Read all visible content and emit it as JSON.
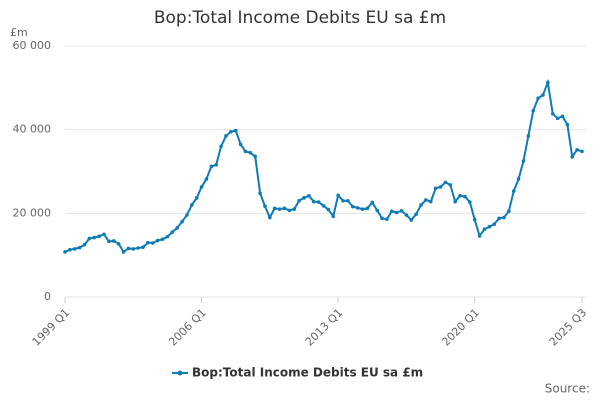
{
  "chart_data": {
    "type": "line",
    "title": "Bop:Total Income Debits EU sa £m",
    "y_unit": "£m",
    "source": "Source:",
    "categories": [
      "1999 Q1",
      null,
      null,
      null,
      null,
      null,
      null,
      null,
      null,
      null,
      null,
      null,
      null,
      null,
      null,
      null,
      null,
      null,
      null,
      null,
      null,
      null,
      null,
      null,
      null,
      null,
      null,
      null,
      "2006 Q1",
      null,
      null,
      null,
      null,
      null,
      null,
      null,
      null,
      null,
      null,
      null,
      null,
      null,
      null,
      null,
      null,
      null,
      null,
      null,
      null,
      null,
      null,
      null,
      null,
      null,
      null,
      null,
      "2013 Q1",
      null,
      null,
      null,
      null,
      null,
      null,
      null,
      null,
      null,
      null,
      null,
      null,
      null,
      null,
      null,
      null,
      null,
      null,
      null,
      null,
      null,
      null,
      null,
      null,
      null,
      null,
      null,
      "2020 Q1",
      null,
      null,
      null,
      null,
      null,
      null,
      null,
      null,
      null,
      null,
      null,
      null,
      null,
      null,
      null,
      null,
      null,
      null,
      null,
      null,
      null,
      "2025 Q3"
    ],
    "series": [
      {
        "name": "Bop:Total Income Debits EU sa £m",
        "color": "#0f7bb8",
        "values": [
          10800,
          11300,
          11500,
          11800,
          12500,
          14000,
          14200,
          14500,
          15000,
          13300,
          13400,
          12700,
          10800,
          11600,
          11500,
          11700,
          11900,
          13000,
          12900,
          13500,
          13800,
          14400,
          15500,
          16500,
          18000,
          19600,
          22000,
          23700,
          26300,
          28200,
          31200,
          31600,
          36000,
          38500,
          39500,
          39800,
          36500,
          34800,
          34500,
          33600,
          24800,
          21700,
          19000,
          21200,
          21000,
          21200,
          20700,
          21000,
          23000,
          23700,
          24200,
          22800,
          22700,
          21800,
          20900,
          19300,
          24300,
          23000,
          23000,
          21600,
          21300,
          21000,
          21200,
          22600,
          20700,
          18800,
          18600,
          20500,
          20200,
          20600,
          19600,
          18400,
          19800,
          22000,
          23200,
          22800,
          26000,
          26300,
          27400,
          26800,
          22800,
          24200,
          24000,
          22700,
          18500,
          14600,
          16200,
          16800,
          17400,
          18800,
          19000,
          20500,
          25300,
          28200,
          32500,
          38500,
          44500,
          47500,
          48300,
          51300,
          43800,
          42700,
          43200,
          41200,
          33500,
          35200,
          34800
        ]
      }
    ],
    "ylim": [
      0,
      60000
    ],
    "yticks": [
      0,
      {
        "value": 20000,
        "label": "20 000"
      },
      {
        "value": 40000,
        "label": "40 000"
      },
      {
        "value": 60000,
        "label": "60 000"
      }
    ],
    "grid": true
  }
}
